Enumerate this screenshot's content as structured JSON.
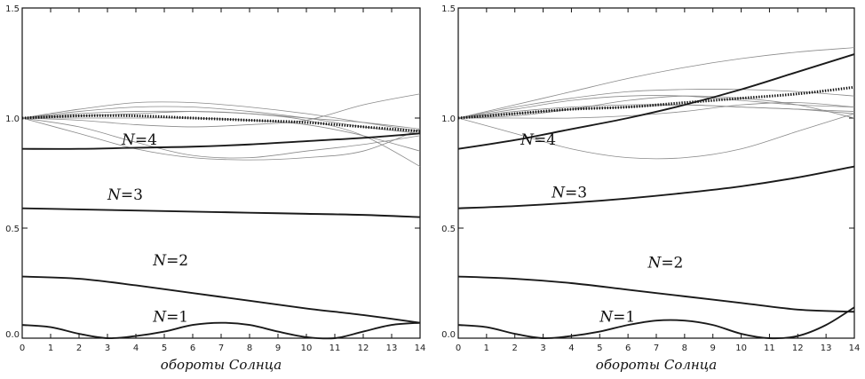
{
  "chart_data": [
    {
      "type": "line",
      "xlabel": "обороты Солнца",
      "xlim": [
        0,
        14
      ],
      "ylim": [
        0,
        1.5
      ],
      "xticks": [
        "0",
        "1",
        "2",
        "3",
        "4",
        "5",
        "6",
        "7",
        "8",
        "9",
        "10",
        "11",
        "12",
        "13",
        "14"
      ],
      "yticks": [
        "0.0",
        "0.5",
        "1.0",
        "1.5"
      ],
      "grid": false,
      "labels": [
        {
          "prefix": "N",
          "suffix": "=4",
          "x": 3.5,
          "y": 0.88
        },
        {
          "prefix": "N",
          "suffix": "=3",
          "x": 3.0,
          "y": 0.63
        },
        {
          "prefix": "N",
          "suffix": "=2",
          "x": 4.6,
          "y": 0.33
        },
        {
          "prefix": "N",
          "suffix": "=1",
          "x": 4.6,
          "y": 0.075
        }
      ],
      "thick_series": [
        {
          "x": [
            0,
            2,
            4,
            6,
            8,
            10,
            12,
            14
          ],
          "y": [
            0.86,
            0.86,
            0.865,
            0.87,
            0.88,
            0.895,
            0.91,
            0.93
          ]
        },
        {
          "x": [
            0,
            2,
            4,
            6,
            8,
            10,
            12,
            14
          ],
          "y": [
            0.59,
            0.585,
            0.58,
            0.575,
            0.57,
            0.565,
            0.56,
            0.55
          ]
        },
        {
          "x": [
            0,
            2,
            4,
            6,
            8,
            10,
            12,
            14
          ],
          "y": [
            0.28,
            0.27,
            0.24,
            0.205,
            0.17,
            0.135,
            0.105,
            0.07
          ]
        },
        {
          "x": [
            0,
            1,
            2,
            3,
            4,
            5,
            6,
            7,
            8,
            9,
            10,
            11,
            12,
            13,
            14
          ],
          "y": [
            0.06,
            0.05,
            0.02,
            0.0,
            0.01,
            0.03,
            0.06,
            0.07,
            0.06,
            0.03,
            0.005,
            0.0,
            0.03,
            0.06,
            0.07
          ]
        }
      ],
      "mean_series": {
        "x": [
          0,
          2,
          4,
          6,
          8,
          10,
          12,
          14
        ],
        "y": [
          1.0,
          1.01,
          1.01,
          1.0,
          0.99,
          0.98,
          0.96,
          0.94
        ]
      },
      "thin_series": [
        {
          "x": [
            0,
            2,
            4,
            6,
            8,
            10,
            12,
            14
          ],
          "y": [
            1.0,
            1.04,
            1.07,
            1.07,
            1.05,
            1.02,
            0.98,
            0.94
          ]
        },
        {
          "x": [
            0,
            2,
            4,
            6,
            8,
            10,
            12,
            14
          ],
          "y": [
            1.0,
            1.03,
            1.05,
            1.05,
            1.03,
            1.0,
            0.96,
            0.93
          ]
        },
        {
          "x": [
            0,
            2,
            4,
            6,
            8,
            10,
            12,
            14
          ],
          "y": [
            1.0,
            1.02,
            1.03,
            1.03,
            1.02,
            1.0,
            0.98,
            0.95
          ]
        },
        {
          "x": [
            0,
            2,
            4,
            6,
            8,
            10,
            12,
            14
          ],
          "y": [
            1.0,
            0.99,
            0.97,
            0.96,
            0.97,
            0.99,
            1.06,
            1.11
          ]
        },
        {
          "x": [
            0,
            2,
            4,
            6,
            8,
            10,
            12,
            14
          ],
          "y": [
            1.0,
            0.93,
            0.86,
            0.82,
            0.81,
            0.82,
            0.85,
            0.95
          ]
        },
        {
          "x": [
            0,
            2,
            4,
            6,
            8,
            10,
            12,
            14
          ],
          "y": [
            1.0,
            0.96,
            0.89,
            0.83,
            0.82,
            0.85,
            0.88,
            0.92
          ]
        },
        {
          "x": [
            0,
            2,
            4,
            6,
            8,
            10,
            12,
            14
          ],
          "y": [
            1.0,
            1.0,
            1.0,
            1.0,
            0.99,
            0.97,
            0.92,
            0.85
          ]
        },
        {
          "x": [
            0,
            2,
            4,
            6,
            8,
            10,
            12,
            14
          ],
          "y": [
            1.0,
            1.01,
            1.02,
            1.03,
            1.02,
            0.99,
            0.92,
            0.78
          ]
        }
      ]
    },
    {
      "type": "line",
      "xlabel": "обороты Солнца",
      "xlim": [
        0,
        14
      ],
      "ylim": [
        0,
        1.5
      ],
      "xticks": [
        "0",
        "1",
        "2",
        "3",
        "4",
        "5",
        "6",
        "7",
        "8",
        "9",
        "10",
        "11",
        "12",
        "13",
        "14"
      ],
      "yticks": [
        "0.0",
        "0.5",
        "1.0",
        "1.5"
      ],
      "grid": false,
      "labels": [
        {
          "prefix": "N",
          "suffix": "=4",
          "x": 2.2,
          "y": 0.88
        },
        {
          "prefix": "N",
          "suffix": "=3",
          "x": 3.3,
          "y": 0.64
        },
        {
          "prefix": "N",
          "suffix": "=2",
          "x": 6.7,
          "y": 0.32
        },
        {
          "prefix": "N",
          "suffix": "=1",
          "x": 5.0,
          "y": 0.075
        }
      ],
      "thick_series": [
        {
          "x": [
            0,
            2,
            4,
            6,
            8,
            10,
            12,
            14
          ],
          "y": [
            0.86,
            0.9,
            0.95,
            1.0,
            1.06,
            1.13,
            1.21,
            1.29
          ]
        },
        {
          "x": [
            0,
            2,
            4,
            6,
            8,
            10,
            12,
            14
          ],
          "y": [
            0.59,
            0.6,
            0.615,
            0.635,
            0.66,
            0.69,
            0.73,
            0.78
          ]
        },
        {
          "x": [
            0,
            2,
            4,
            6,
            8,
            10,
            12,
            14
          ],
          "y": [
            0.28,
            0.27,
            0.25,
            0.22,
            0.19,
            0.16,
            0.13,
            0.12
          ]
        },
        {
          "x": [
            0,
            1,
            2,
            3,
            4,
            5,
            6,
            7,
            8,
            9,
            10,
            11,
            12,
            13,
            14
          ],
          "y": [
            0.06,
            0.05,
            0.02,
            0.0,
            0.01,
            0.03,
            0.06,
            0.08,
            0.08,
            0.06,
            0.02,
            0.0,
            0.01,
            0.06,
            0.14
          ]
        }
      ],
      "mean_series": {
        "x": [
          0,
          2,
          4,
          6,
          8,
          10,
          12,
          14
        ],
        "y": [
          1.0,
          1.02,
          1.04,
          1.05,
          1.07,
          1.09,
          1.11,
          1.14
        ]
      },
      "thin_series": [
        {
          "x": [
            0,
            2,
            4,
            6,
            8,
            10,
            12,
            14
          ],
          "y": [
            1.0,
            1.06,
            1.12,
            1.18,
            1.23,
            1.27,
            1.3,
            1.32
          ]
        },
        {
          "x": [
            0,
            2,
            4,
            6,
            8,
            10,
            12,
            14
          ],
          "y": [
            1.0,
            1.05,
            1.09,
            1.12,
            1.13,
            1.13,
            1.12,
            1.1
          ]
        },
        {
          "x": [
            0,
            2,
            4,
            6,
            8,
            10,
            12,
            14
          ],
          "y": [
            1.0,
            1.04,
            1.08,
            1.1,
            1.1,
            1.08,
            1.06,
            1.05
          ]
        },
        {
          "x": [
            0,
            2,
            4,
            6,
            8,
            10,
            12,
            14
          ],
          "y": [
            1.0,
            1.03,
            1.05,
            1.06,
            1.06,
            1.05,
            1.04,
            1.03
          ]
        },
        {
          "x": [
            0,
            2,
            4,
            6,
            8,
            10,
            12,
            14
          ],
          "y": [
            1.0,
            1.02,
            1.04,
            1.05,
            1.06,
            1.05,
            1.04,
            1.02
          ]
        },
        {
          "x": [
            0,
            2,
            4,
            6,
            8,
            10,
            12,
            14
          ],
          "y": [
            1.0,
            0.93,
            0.86,
            0.82,
            0.82,
            0.86,
            0.94,
            1.02
          ]
        },
        {
          "x": [
            0,
            2,
            4,
            6,
            8,
            10,
            12,
            14
          ],
          "y": [
            1.0,
            1.0,
            1.0,
            1.01,
            1.03,
            1.06,
            1.07,
            1.05
          ]
        },
        {
          "x": [
            0,
            2,
            4,
            6,
            8,
            10,
            12,
            14
          ],
          "y": [
            1.0,
            1.01,
            1.04,
            1.08,
            1.1,
            1.09,
            1.06,
            1.0
          ]
        }
      ]
    }
  ]
}
